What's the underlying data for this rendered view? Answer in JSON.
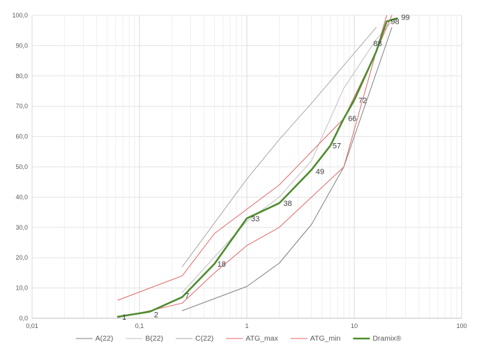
{
  "chart_data": {
    "type": "line",
    "xscale": "log",
    "xlim": [
      0.01,
      100
    ],
    "ylim": [
      0,
      100
    ],
    "x_tick_labels": [
      "0,01",
      "0,1",
      "1",
      "10",
      "100"
    ],
    "y_tick_labels": [
      "0,0",
      "10,0",
      "20,0",
      "30,0",
      "40,0",
      "50,0",
      "60,0",
      "70,0",
      "80,0",
      "90,0",
      "100,0"
    ],
    "grid": true,
    "legend_position": "bottom",
    "series": [
      {
        "name": "A(22)",
        "color": "#7f7f7f",
        "width": 1,
        "x": [
          0.25,
          1,
          2,
          4,
          8,
          22.4
        ],
        "y": [
          2.5,
          10.5,
          18.2,
          31,
          50,
          96
        ]
      },
      {
        "name": "B(22)",
        "color": "#bfbfbf",
        "width": 1,
        "x": [
          0.25,
          1,
          2,
          4,
          8,
          16,
          22.4
        ],
        "y": [
          8.5,
          32,
          40,
          52,
          76,
          92,
          98
        ]
      },
      {
        "name": "C(22)",
        "color": "#a6a6a6",
        "width": 1,
        "x": [
          0.25,
          1,
          2,
          4,
          8,
          16
        ],
        "y": [
          17,
          46,
          59,
          71,
          83.5,
          96
        ]
      },
      {
        "name": "ATG_max",
        "color": "#e06666",
        "width": 1,
        "x": [
          0.063,
          0.25,
          0.5,
          2,
          8,
          16,
          20
        ],
        "y": [
          6,
          14,
          28,
          44,
          66,
          88,
          100
        ]
      },
      {
        "name": "ATG_min",
        "color": "#e06666",
        "width": 1,
        "x": [
          0.063,
          0.125,
          0.25,
          0.5,
          1,
          2,
          8,
          16,
          22.4
        ],
        "y": [
          0.3,
          2.5,
          5,
          15,
          24,
          30,
          50,
          88,
          100
        ]
      },
      {
        "name": "Dramix®",
        "color": "#4e8c2e",
        "width": 2.6,
        "x": [
          0.063,
          0.125,
          0.25,
          0.5,
          1,
          2,
          4,
          6,
          8,
          10,
          16,
          20,
          25
        ],
        "y": [
          0.5,
          2.2,
          7,
          18,
          33,
          38,
          49,
          57,
          66,
          72,
          88,
          98,
          99
        ]
      }
    ],
    "data_labels": [
      {
        "x": 0.063,
        "y": 0.5,
        "text": "1"
      },
      {
        "x": 0.125,
        "y": 2.2,
        "text": "2"
      },
      {
        "x": 0.25,
        "y": 7,
        "text": "7"
      },
      {
        "x": 0.5,
        "y": 18,
        "text": "18"
      },
      {
        "x": 1,
        "y": 33,
        "text": "33"
      },
      {
        "x": 2,
        "y": 38,
        "text": "38"
      },
      {
        "x": 4,
        "y": 49,
        "text": "49"
      },
      {
        "x": 6,
        "y": 57,
        "text": "57"
      },
      {
        "x": 8,
        "y": 66,
        "text": "66"
      },
      {
        "x": 10,
        "y": 72,
        "text": "72"
      },
      {
        "x": 16,
        "y": 88,
        "text": "88"
      },
      {
        "x": 20,
        "y": 98,
        "text": "98"
      },
      {
        "x": 25,
        "y": 99,
        "text": "99"
      }
    ]
  }
}
